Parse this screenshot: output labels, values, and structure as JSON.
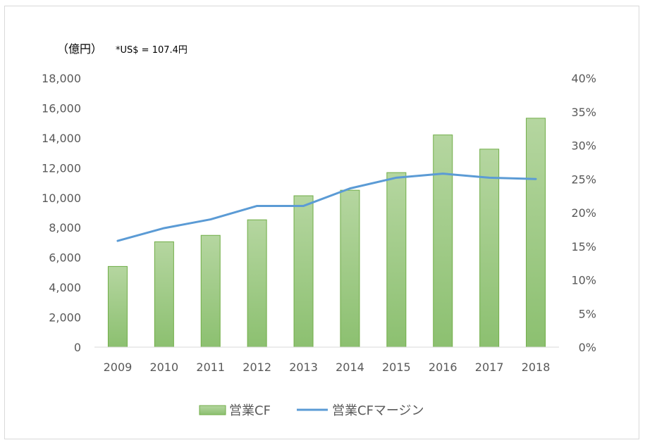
{
  "chart_data": {
    "type": "bar",
    "categories": [
      "2009",
      "2010",
      "2011",
      "2012",
      "2013",
      "2014",
      "2015",
      "2016",
      "2017",
      "2018"
    ],
    "series": [
      {
        "name": "営業CF",
        "type": "bar",
        "axis": "left",
        "values": [
          5400,
          7050,
          7480,
          8520,
          10130,
          10500,
          11680,
          14200,
          13250,
          15320
        ],
        "color": "#70ad47",
        "fill_top": "#b5d6a0",
        "fill_bottom": "#8cc070"
      },
      {
        "name": "営業CFマージン",
        "type": "line",
        "axis": "right",
        "values": [
          15.8,
          17.7,
          19.0,
          21.0,
          21.0,
          23.6,
          25.2,
          25.8,
          25.2,
          25.0
        ],
        "color": "#5b9bd5"
      }
    ],
    "left_axis": {
      "ylim": [
        0,
        18000
      ],
      "ticks": [
        0,
        2000,
        4000,
        6000,
        8000,
        10000,
        12000,
        14000,
        16000,
        18000
      ],
      "tick_labels": [
        "0",
        "2,000",
        "4,000",
        "6,000",
        "8,000",
        "10,000",
        "12,000",
        "14,000",
        "16,000",
        "18,000"
      ],
      "unit_label": "（億円）"
    },
    "right_axis": {
      "ylim": [
        0,
        40
      ],
      "ticks": [
        0,
        5,
        10,
        15,
        20,
        25,
        30,
        35,
        40
      ],
      "tick_labels": [
        "0%",
        "5%",
        "10%",
        "15%",
        "20%",
        "25%",
        "30%",
        "35%",
        "40%"
      ]
    },
    "note": "*US$ = 107.4円",
    "grid": false,
    "legend": "bottom-center"
  }
}
